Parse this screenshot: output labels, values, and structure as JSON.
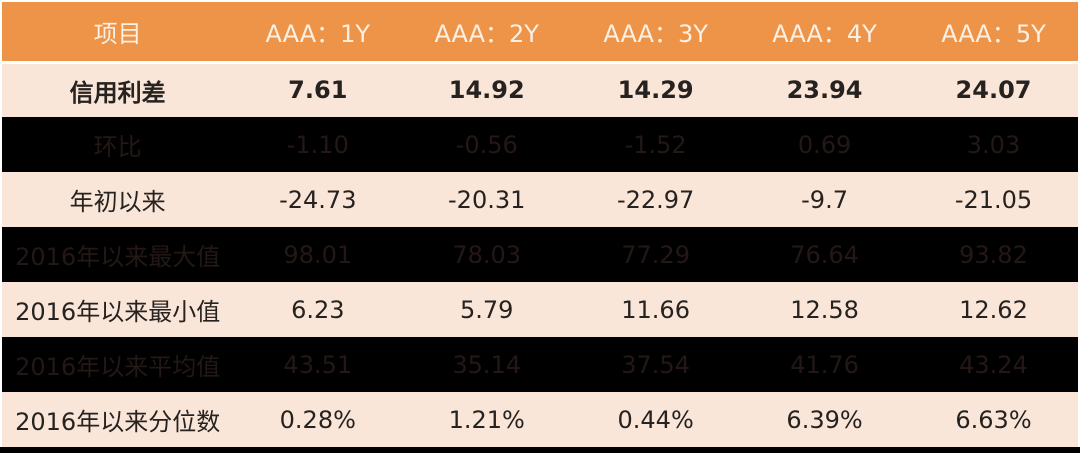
{
  "colors": {
    "header_bg": "#ED9449",
    "header_text": "#FBF0E4",
    "light_row_bg": "#FAE6D8",
    "light_row_text": "#262220",
    "dark_row_bg": "#000000",
    "dark_row_text": "#231815",
    "page_bg": "#FFFFFF"
  },
  "chart_data": {
    "type": "table",
    "columns": [
      "项目",
      "AAA：1Y",
      "AAA：2Y",
      "AAA：3Y",
      "AAA：4Y",
      "AAA：5Y"
    ],
    "rows": [
      {
        "label": "信用利差",
        "values": [
          "7.61",
          "14.92",
          "14.29",
          "23.94",
          "24.07"
        ],
        "style": "light",
        "bold": true
      },
      {
        "label": "环比",
        "values": [
          "-1.10",
          "-0.56",
          "-1.52",
          "0.69",
          "3.03"
        ],
        "style": "dark",
        "bold": false
      },
      {
        "label": "年初以来",
        "values": [
          "-24.73",
          "-20.31",
          "-22.97",
          "-9.7",
          "-21.05"
        ],
        "style": "light",
        "bold": false
      },
      {
        "label": "2016年以来最大值",
        "values": [
          "98.01",
          "78.03",
          "77.29",
          "76.64",
          "93.82"
        ],
        "style": "dark",
        "bold": false
      },
      {
        "label": "2016年以来最小值",
        "values": [
          "6.23",
          "5.79",
          "11.66",
          "12.58",
          "12.62"
        ],
        "style": "light",
        "bold": false
      },
      {
        "label": "2016年以来平均值",
        "values": [
          "43.51",
          "35.14",
          "37.54",
          "41.76",
          "43.24"
        ],
        "style": "dark",
        "bold": false
      },
      {
        "label": "2016年以来分位数",
        "values": [
          "0.28%",
          "1.21%",
          "0.44%",
          "6.39%",
          "6.63%"
        ],
        "style": "light",
        "bold": false
      }
    ]
  }
}
